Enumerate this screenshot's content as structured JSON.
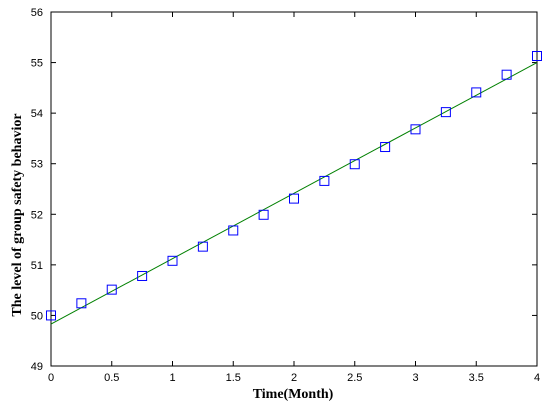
{
  "chart_data": {
    "type": "scatter",
    "title": "",
    "xlabel": "Time(Month)",
    "ylabel": "The level of group safety behavior",
    "xlim": [
      0,
      4
    ],
    "ylim": [
      49,
      56
    ],
    "x_ticks": [
      0,
      0.5,
      1,
      1.5,
      2,
      2.5,
      3,
      3.5,
      4
    ],
    "x_tick_labels": [
      "0",
      "0.5",
      "1",
      "1.5",
      "2",
      "2.5",
      "3",
      "3.5",
      "4"
    ],
    "y_ticks": [
      49,
      50,
      51,
      52,
      53,
      54,
      55,
      56
    ],
    "y_tick_labels": [
      "49",
      "50",
      "51",
      "52",
      "53",
      "54",
      "55",
      "56"
    ],
    "grid": false,
    "legend": "none",
    "series": [
      {
        "kind": "markers",
        "marker": "square",
        "color": "#0000ff",
        "x": [
          0,
          0.25,
          0.5,
          0.75,
          1,
          1.25,
          1.5,
          1.75,
          2,
          2.25,
          2.5,
          2.75,
          3,
          3.25,
          3.5,
          3.75,
          4
        ],
        "y": [
          50.0,
          50.24,
          50.51,
          50.78,
          51.08,
          51.36,
          51.68,
          51.99,
          52.31,
          52.66,
          52.99,
          53.33,
          53.68,
          54.02,
          54.41,
          54.76,
          55.13
        ]
      },
      {
        "kind": "line",
        "color": "#008000",
        "x": [
          0,
          4
        ],
        "y": [
          49.83,
          55.0
        ]
      }
    ]
  }
}
